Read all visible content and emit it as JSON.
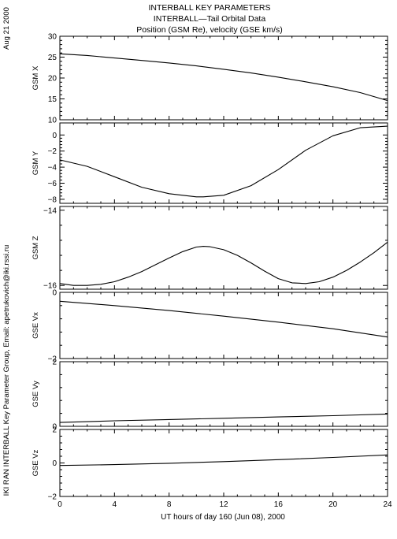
{
  "header": {
    "title_line1": "INTERBALL KEY PARAMETERS",
    "title_line2": "INTERBALL—Tail Orbital Data",
    "title_line3": "Position (GSM Re), velocity (GSE km/s)"
  },
  "side": {
    "date": "Aug 21 2000",
    "credit": "IKI RAN INTERBALL Key Parameter Group, Email: apetrukovich@iki.rssi.ru"
  },
  "chart_data": {
    "type": "line",
    "xlabel": "UT hours of day 160 (Jun 08), 2000",
    "xlim": [
      0,
      24
    ],
    "xticks": [
      0,
      4,
      8,
      12,
      16,
      20,
      24
    ],
    "panels": [
      {
        "ylabel": "GSM X",
        "ylim": [
          10,
          30
        ],
        "yticks": [
          10,
          15,
          20,
          25,
          30
        ],
        "series": [
          {
            "x": [
              0,
              2,
              4,
              6,
              8,
              10,
              12,
              14,
              16,
              18,
              20,
              22,
              24
            ],
            "y": [
              25.8,
              25.4,
              24.8,
              24.2,
              23.6,
              22.9,
              22.1,
              21.2,
              20.2,
              19.1,
              17.9,
              16.5,
              14.6
            ]
          }
        ]
      },
      {
        "ylabel": "GSM Y",
        "ylim": [
          -8.5,
          1.5
        ],
        "yticks": [
          -8,
          -6,
          -4,
          -2,
          0
        ],
        "series": [
          {
            "x": [
              0,
              2,
              4,
              6,
              8,
              10,
              10.5,
              12,
              14,
              16,
              18,
              20,
              22,
              24
            ],
            "y": [
              -3.1,
              -3.9,
              -5.2,
              -6.5,
              -7.3,
              -7.7,
              -7.7,
              -7.5,
              -6.3,
              -4.3,
              -1.9,
              -0.1,
              0.9,
              1.1
            ]
          }
        ]
      },
      {
        "ylabel": "GSM Z",
        "ylim": [
          -16.1,
          -13.9
        ],
        "yticks": [
          -16,
          -14
        ],
        "series": [
          {
            "x": [
              0,
              1,
              2,
              3,
              4,
              5,
              6,
              7,
              8,
              9,
              10,
              10.5,
              11,
              12,
              13,
              14,
              15,
              16,
              17,
              18,
              19,
              20,
              21,
              22,
              23,
              24
            ],
            "y": [
              -15.95,
              -16.0,
              -16.0,
              -15.97,
              -15.9,
              -15.78,
              -15.63,
              -15.45,
              -15.27,
              -15.1,
              -14.98,
              -14.96,
              -14.97,
              -15.05,
              -15.2,
              -15.4,
              -15.62,
              -15.82,
              -15.93,
              -15.95,
              -15.9,
              -15.78,
              -15.6,
              -15.38,
              -15.13,
              -14.85
            ]
          }
        ]
      },
      {
        "ylabel": "GSE Vx",
        "ylim": [
          -2,
          0
        ],
        "yticks": [
          -2,
          0
        ],
        "series": [
          {
            "x": [
              0,
              4,
              8,
              12,
              16,
              20,
              24
            ],
            "y": [
              -0.27,
              -0.4,
              -0.55,
              -0.72,
              -0.9,
              -1.1,
              -1.35
            ]
          }
        ]
      },
      {
        "ylabel": "GSE Vy",
        "ylim": [
          0,
          2
        ],
        "yticks": [
          0,
          2
        ],
        "series": [
          {
            "x": [
              0,
              4,
              8,
              12,
              16,
              20,
              24
            ],
            "y": [
              0.12,
              0.17,
              0.21,
              0.25,
              0.29,
              0.33,
              0.38
            ]
          }
        ]
      },
      {
        "ylabel": "GSE Vz",
        "ylim": [
          -2,
          2
        ],
        "yticks": [
          -2,
          0,
          2
        ],
        "series": [
          {
            "x": [
              0,
              4,
              8,
              12,
              16,
              20,
              24
            ],
            "y": [
              -0.15,
              -0.1,
              -0.02,
              0.08,
              0.2,
              0.33,
              0.48
            ]
          }
        ]
      }
    ]
  }
}
